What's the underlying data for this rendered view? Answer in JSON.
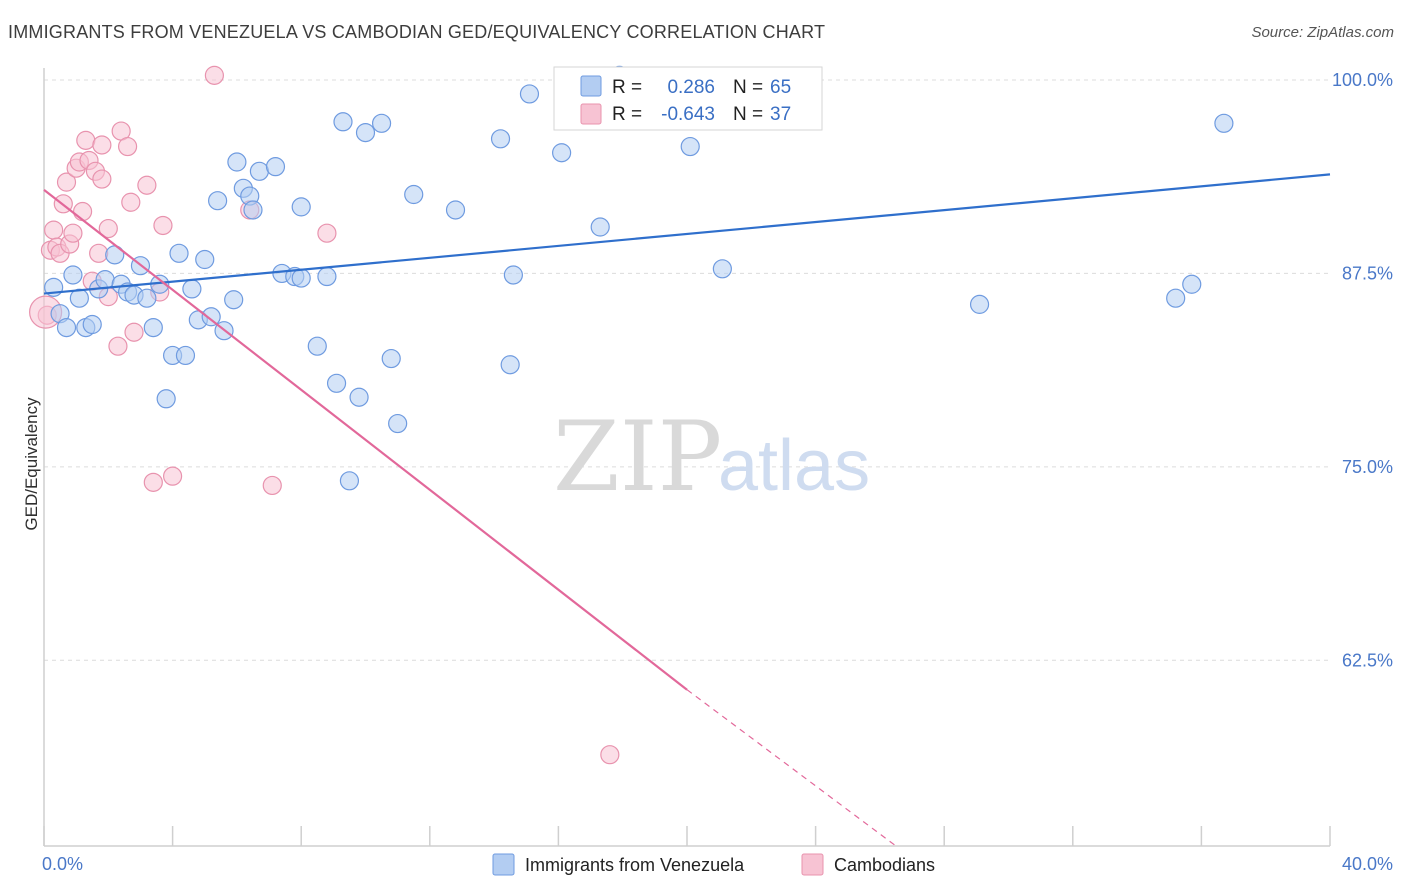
{
  "title": "IMMIGRANTS FROM VENEZUELA VS CAMBODIAN GED/EQUIVALENCY CORRELATION CHART",
  "source": "Source: ZipAtlas.com",
  "watermark": {
    "part1": "ZIP",
    "part2": "atlas"
  },
  "colors": {
    "blue_fill": "#b3cdf2",
    "blue_stroke": "#6f9be0",
    "blue_line": "#2f6fcc",
    "pink_fill": "#f7c3d3",
    "pink_stroke": "#e893ae",
    "pink_line": "#e2689a",
    "grid": "#dcdcdc",
    "axis_label": "#4a78c8"
  },
  "legend": {
    "rows": [
      {
        "r_label": "R =",
        "r_value": "0.286",
        "n_label": "N =",
        "n_value": "65"
      },
      {
        "r_label": "R =",
        "r_value": "-0.643",
        "n_label": "N =",
        "n_value": "37"
      }
    ]
  },
  "chart_data": {
    "type": "scatter",
    "xlabel": "",
    "ylabel": "GED/Equivalency",
    "xlim": [
      0,
      40
    ],
    "ylim": [
      50.5,
      100
    ],
    "x_tick_labels": [
      {
        "value": 0,
        "label": "0.0%"
      },
      {
        "value": 40,
        "label": "40.0%"
      }
    ],
    "y_tick_labels": [
      {
        "value": 100,
        "label": "100.0%"
      },
      {
        "value": 87.5,
        "label": "87.5%"
      },
      {
        "value": 75,
        "label": "75.0%"
      },
      {
        "value": 62.5,
        "label": "62.5%"
      }
    ],
    "grid": true,
    "legend_position": "top-center",
    "series": [
      {
        "name": "Immigrants from Venezuela",
        "color": "#b3cdf2",
        "trend": {
          "x": [
            0,
            40
          ],
          "y": [
            86.2,
            93.9
          ]
        },
        "points": [
          [
            0.3,
            86.6
          ],
          [
            0.5,
            84.9
          ],
          [
            0.7,
            84.0
          ],
          [
            0.9,
            87.4
          ],
          [
            1.1,
            85.9
          ],
          [
            1.3,
            84.0
          ],
          [
            1.5,
            84.2
          ],
          [
            1.7,
            86.5
          ],
          [
            1.9,
            87.1
          ],
          [
            2.2,
            88.7
          ],
          [
            2.4,
            86.8
          ],
          [
            2.6,
            86.3
          ],
          [
            2.8,
            86.1
          ],
          [
            3.0,
            88.0
          ],
          [
            3.2,
            85.9
          ],
          [
            3.4,
            84.0
          ],
          [
            3.6,
            86.8
          ],
          [
            3.8,
            79.4
          ],
          [
            4.0,
            82.2
          ],
          [
            4.2,
            88.8
          ],
          [
            4.4,
            82.2
          ],
          [
            4.6,
            86.5
          ],
          [
            4.8,
            84.5
          ],
          [
            5.0,
            88.4
          ],
          [
            5.2,
            84.7
          ],
          [
            5.4,
            92.2
          ],
          [
            5.6,
            83.8
          ],
          [
            5.9,
            85.8
          ],
          [
            6.0,
            94.7
          ],
          [
            6.2,
            93.0
          ],
          [
            6.4,
            92.5
          ],
          [
            6.5,
            91.6
          ],
          [
            6.7,
            94.1
          ],
          [
            7.2,
            94.4
          ],
          [
            7.4,
            87.5
          ],
          [
            7.8,
            87.3
          ],
          [
            8.0,
            87.2
          ],
          [
            8.0,
            91.8
          ],
          [
            8.5,
            82.8
          ],
          [
            8.8,
            87.3
          ],
          [
            9.1,
            80.4
          ],
          [
            9.3,
            97.3
          ],
          [
            9.5,
            74.1
          ],
          [
            9.8,
            79.5
          ],
          [
            10.0,
            96.6
          ],
          [
            10.5,
            97.2
          ],
          [
            10.8,
            82.0
          ],
          [
            11.0,
            77.8
          ],
          [
            11.5,
            92.6
          ],
          [
            12.8,
            91.6
          ],
          [
            14.2,
            96.2
          ],
          [
            14.5,
            81.6
          ],
          [
            14.6,
            87.4
          ],
          [
            15.1,
            99.1
          ],
          [
            16.1,
            95.3
          ],
          [
            17.3,
            90.5
          ],
          [
            17.9,
            100.3
          ],
          [
            18.0,
            99.7
          ],
          [
            20.1,
            95.7
          ],
          [
            21.1,
            87.8
          ],
          [
            22.7,
            100.2
          ],
          [
            29.1,
            85.5
          ],
          [
            35.2,
            85.9
          ],
          [
            35.7,
            86.8
          ],
          [
            36.7,
            97.2
          ]
        ]
      },
      {
        "name": "Cambodians",
        "color": "#f7c3d3",
        "trend": {
          "x": [
            0,
            20
          ],
          "y": [
            92.9,
            60.6
          ]
        },
        "trend_dashed": {
          "x": [
            20,
            26.5
          ],
          "y": [
            60.6,
            50.5
          ]
        },
        "points": [
          [
            0.1,
            84.8
          ],
          [
            0.2,
            89.0
          ],
          [
            0.3,
            90.3
          ],
          [
            0.4,
            89.2
          ],
          [
            0.5,
            88.8
          ],
          [
            0.6,
            92.0
          ],
          [
            0.7,
            93.4
          ],
          [
            0.8,
            89.4
          ],
          [
            0.9,
            90.1
          ],
          [
            1.0,
            94.3
          ],
          [
            1.1,
            94.7
          ],
          [
            1.2,
            91.5
          ],
          [
            1.3,
            96.1
          ],
          [
            1.4,
            94.8
          ],
          [
            1.5,
            87.0
          ],
          [
            1.6,
            94.1
          ],
          [
            1.7,
            88.8
          ],
          [
            1.8,
            93.6
          ],
          [
            1.8,
            95.8
          ],
          [
            2.0,
            90.4
          ],
          [
            2.0,
            86.0
          ],
          [
            2.3,
            82.8
          ],
          [
            2.4,
            96.7
          ],
          [
            2.6,
            95.7
          ],
          [
            2.7,
            92.1
          ],
          [
            2.8,
            83.7
          ],
          [
            3.2,
            93.2
          ],
          [
            3.4,
            74.0
          ],
          [
            3.6,
            86.3
          ],
          [
            3.7,
            90.6
          ],
          [
            4.0,
            74.4
          ],
          [
            5.3,
            100.3
          ],
          [
            6.4,
            91.6
          ],
          [
            7.1,
            73.8
          ],
          [
            8.8,
            90.1
          ],
          [
            17.6,
            56.4
          ],
          [
            0.05,
            85.0
          ]
        ]
      }
    ]
  },
  "bottom_legend": [
    {
      "label": "Immigrants from Venezuela"
    },
    {
      "label": "Cambodians"
    }
  ]
}
